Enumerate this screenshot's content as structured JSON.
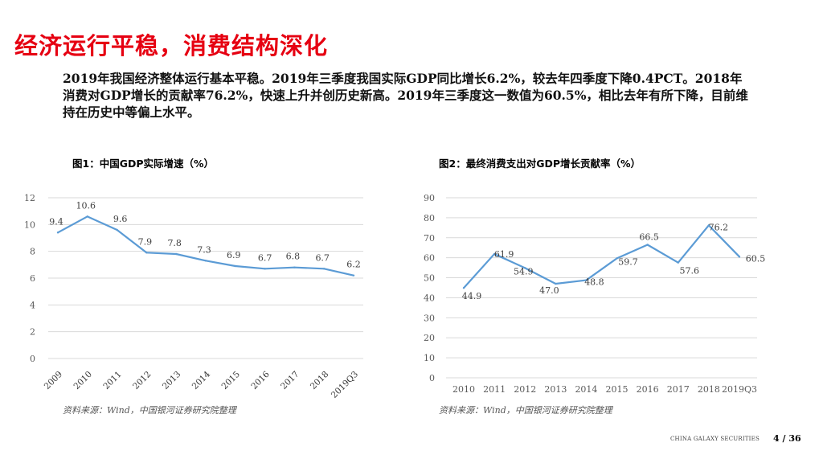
{
  "slide": {
    "title": "经济运行平稳，消费结构深化",
    "description": "2019年我国经济整体运行基本平稳。2019年三季度我国实际GDP同比增长6.2%，较去年四季度下降0.4PCT。2018年消费对GDP增长的贡献率76.2%，快速上升并创历史新高。2019年三季度这一数值为60.5%，相比去年有所下降，目前维持在历史中等偏上水平。"
  },
  "charts": [
    {
      "title": "图1：中国GDP实际增速（%）",
      "source": "资料来源：Wind，中国银河证券研究院整理"
    },
    {
      "title": "图2：最终消费支出对GDP增长贡献率（%）",
      "source": "资料来源：Wind，中国银河证券研究院整理"
    }
  ],
  "footer": {
    "brand": "CHINA GALAXY SECURITIES",
    "page": "4 / 36"
  },
  "colors": {
    "title_red": "#e60012",
    "line": "#5b9bd5",
    "grid": "#d9d9d9",
    "axis_text": "#595959"
  },
  "chart_data": [
    {
      "type": "line",
      "title": "图1：中国GDP实际增速（%）",
      "categories": [
        "2009",
        "2010",
        "2011",
        "2012",
        "2013",
        "2014",
        "2015",
        "2016",
        "2017",
        "2018",
        "2019Q3"
      ],
      "values": [
        9.4,
        10.6,
        9.6,
        7.9,
        7.8,
        7.3,
        6.9,
        6.7,
        6.8,
        6.7,
        6.2
      ],
      "labels": [
        "9.4",
        "10.6",
        "9.6",
        "7.9",
        "7.8",
        "7.3",
        "6.9",
        "6.7",
        "6.8",
        "6.7",
        "6.2"
      ],
      "yticks": [
        0,
        2,
        4,
        6,
        8,
        10,
        12
      ],
      "ylim": [
        0,
        12
      ],
      "xlabel": "",
      "ylabel": "",
      "grid": true,
      "xtick_rotation": -45
    },
    {
      "type": "line",
      "title": "图2：最终消费支出对GDP增长贡献率（%）",
      "categories": [
        "2010",
        "2011",
        "2012",
        "2013",
        "2014",
        "2015",
        "2016",
        "2017",
        "2018",
        "2019Q3"
      ],
      "values": [
        44.9,
        61.9,
        54.9,
        47.0,
        48.8,
        59.7,
        66.5,
        57.6,
        76.2,
        60.5
      ],
      "labels": [
        "44.9",
        "61.9",
        "54.9",
        "47.0",
        "48.8",
        "59.7",
        "66.5",
        "57.6",
        "76.2",
        "60.5"
      ],
      "yticks": [
        0,
        10,
        20,
        30,
        40,
        50,
        60,
        70,
        80,
        90
      ],
      "ylim": [
        0,
        90
      ],
      "xlabel": "",
      "ylabel": "",
      "grid": true,
      "xtick_rotation": 0
    }
  ]
}
